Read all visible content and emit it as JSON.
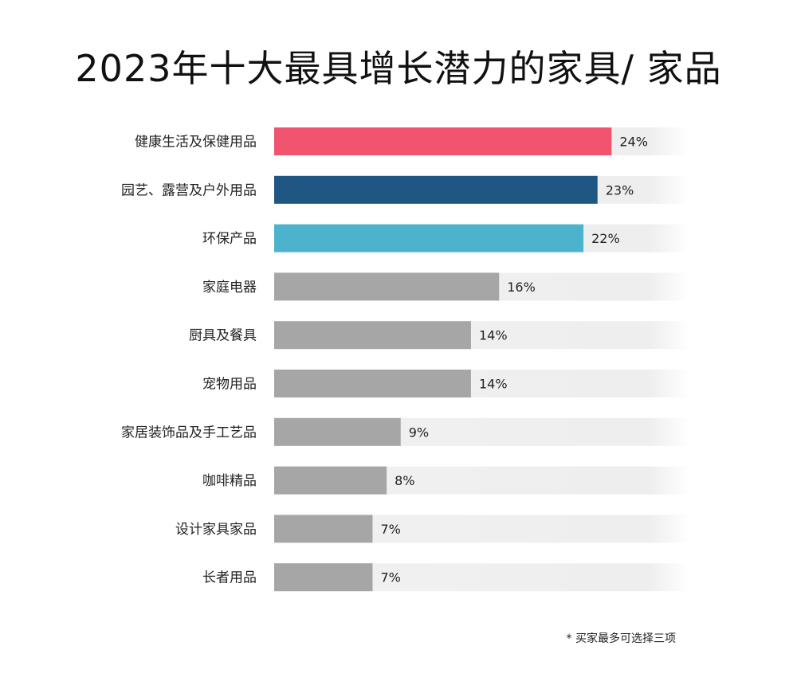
{
  "chart_data": {
    "type": "bar",
    "orientation": "horizontal",
    "title": "2023年十大最具增长潜力的家具/ 家品",
    "categories": [
      "健康生活及保健用品",
      "园艺、露营及户外用品",
      "环保产品",
      "家庭电器",
      "厨具及餐具",
      "宠物用品",
      "家居装饰品及手工艺品",
      "咖啡精品",
      "设计家具家品",
      "长者用品"
    ],
    "values": [
      24,
      23,
      22,
      16,
      14,
      14,
      9,
      8,
      7,
      7
    ],
    "value_labels": [
      "24%",
      "23%",
      "22%",
      "16%",
      "14%",
      "14%",
      "9%",
      "8%",
      "7%",
      "7%"
    ],
    "colors": [
      "#f0546e",
      "#1f5684",
      "#4db3cc",
      "#a6a6a6",
      "#a6a6a6",
      "#a6a6a6",
      "#a6a6a6",
      "#a6a6a6",
      "#a6a6a6",
      "#a6a6a6"
    ],
    "track_color": "#eeeeee",
    "unit": "%",
    "xlim": [
      0,
      30
    ],
    "xlabel": "",
    "ylabel": "",
    "legend": "none",
    "grid": false
  },
  "footnote": "* 买家最多可选择三项"
}
